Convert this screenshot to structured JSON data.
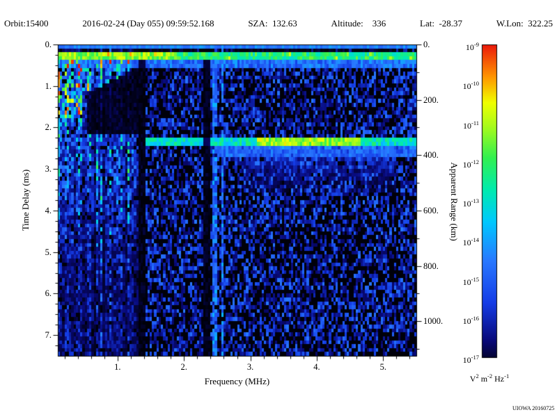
{
  "header": {
    "fields": [
      "Orbit:15400",
      "2016-02-24 (Day 055) 09:59:52.168",
      "SZA:  132.63",
      "Altitude:    336",
      "Lat:  -28.37",
      "W.Lon:  322.25"
    ]
  },
  "chart_data": {
    "type": "heatmap",
    "x_axis": {
      "label": "Frequency (MHz)",
      "min": 0.1,
      "max": 5.5,
      "major_ticks": [
        1,
        2,
        3,
        4,
        5
      ],
      "tick_labels": [
        "1.",
        "2.",
        "3.",
        "4.",
        "5."
      ],
      "minor_step": 0.2
    },
    "y_axis": {
      "label": "Time Delay (ms)",
      "min": 0,
      "max": 7.5,
      "direction": "down",
      "major_ticks": [
        0,
        1,
        2,
        3,
        4,
        5,
        6,
        7
      ],
      "tick_labels": [
        "0.",
        "1.",
        "2.",
        "3.",
        "4.",
        "5.",
        "6.",
        "7."
      ],
      "minor_step": 0.25
    },
    "y2_axis": {
      "label": "Apparent Range (km)",
      "major_ticks": [
        0,
        200,
        400,
        600,
        800,
        1000
      ],
      "tick_labels": [
        "0.",
        "200.",
        "400.",
        "600.",
        "800.",
        "1000."
      ],
      "minor_step": 100,
      "km_per_ms": 150
    },
    "intensity_scale": {
      "scale": "log10",
      "max_exponent": -9,
      "min_exponent": -17,
      "units": "V^2 m^-2 Hz^-1"
    },
    "features": [
      {
        "name": "top-noise-band",
        "description": "Bright cyan-green horizontal band at ~0.25 ms delay spanning all frequencies",
        "delay_ms": [
          0.2,
          0.4
        ],
        "freq_mhz": [
          0.1,
          5.5
        ],
        "level_exponent": -12.5
      },
      {
        "name": "ionospheric-echo-trace",
        "description": "Horizontal echo trace at ~2.3 ms (~350 km apparent range) from ~1.45 to 5.5 MHz, brightest yellow-green between 3.1 and 4.6 MHz",
        "delay_ms": [
          2.26,
          2.46
        ],
        "freq_mhz": [
          1.45,
          5.5
        ],
        "level_exponent": -12
      },
      {
        "name": "diffuse-scatter-cloud",
        "description": "Diffuse blue-cyan scatter just below the echo trace",
        "delay_ms": [
          2.46,
          3.6
        ],
        "freq_mhz": [
          2.9,
          5.2
        ],
        "level_exponent": -15
      },
      {
        "name": "low-frequency-noise",
        "description": "Dense speckled noise with vertical streaks below ~1.3 MHz, brightest at short delays, with a dark wedge near 0.6-1.3 MHz between ~0.6 and 2.2 ms",
        "freq_mhz": [
          0.1,
          1.3
        ]
      },
      {
        "name": "enhanced-vertical-lines",
        "description": "Faint enhanced vertical lines near 2.46 and 2.58 MHz",
        "freq_mhz": [
          2.42,
          2.61
        ]
      },
      {
        "name": "dark-columns",
        "description": "Dark vertical gaps near 1.35-1.42 MHz and 2.30-2.40 MHz",
        "freq_mhz": [
          1.33,
          2.4
        ]
      },
      {
        "name": "background-speckle",
        "description": "Sparse dark-blue noise speckle over black background",
        "level_exponent": -16.5
      }
    ],
    "render_seed": 20160224
  },
  "colorbar": {
    "base": "10",
    "tick_exponents": [
      "-9",
      "-10",
      "-11",
      "-12",
      "-13",
      "-14",
      "-15",
      "-16",
      "-17"
    ],
    "unit_segments": [
      [
        "V",
        "2"
      ],
      [
        "m",
        "-2"
      ],
      [
        "Hz",
        "-1"
      ]
    ],
    "colors_top_to_bottom": [
      "#e61910",
      "#ff9600",
      "#f0ff00",
      "#50f050",
      "#00ebaf",
      "#00c8ff",
      "#2878ff",
      "#1414a0",
      "#00000a"
    ]
  },
  "footer": {
    "credit": "UIOWA 20160725"
  }
}
